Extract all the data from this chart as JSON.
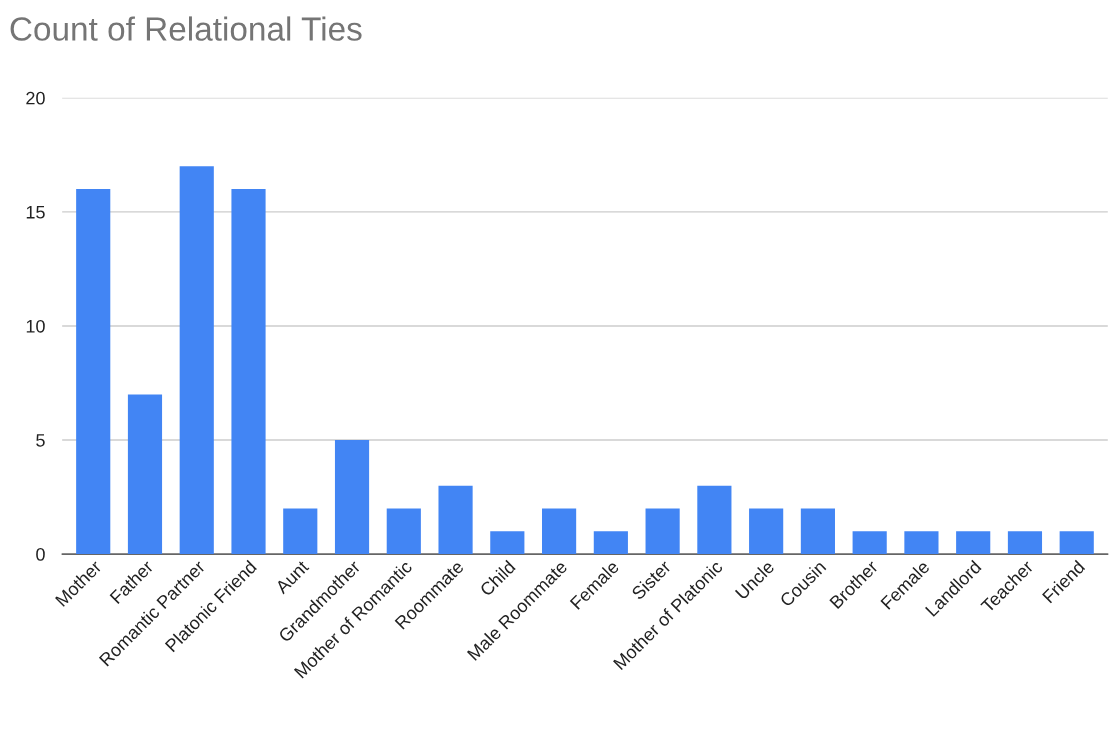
{
  "chart_data": {
    "type": "bar",
    "title": "Count of Relational Ties",
    "categories": [
      "Mother",
      "Father",
      "Romantic Partner",
      "Platonic Friend",
      "Aunt",
      "Grandmother",
      "Mother of Romantic",
      "Roommate",
      "Child",
      "Male Roommate",
      "Female",
      "Sister",
      "Mother of Platonic",
      "Uncle",
      "Cousin",
      "Brother",
      "Female",
      "Landlord",
      "Teacher",
      "Friend"
    ],
    "values": [
      16,
      7,
      17,
      16,
      2,
      5,
      2,
      3,
      1,
      2,
      1,
      2,
      3,
      2,
      2,
      1,
      1,
      1,
      1,
      1
    ],
    "color": "#4285f4",
    "ylim": [
      0,
      20
    ],
    "yticks": [
      0,
      5,
      10,
      15,
      20
    ],
    "grid": "y"
  }
}
